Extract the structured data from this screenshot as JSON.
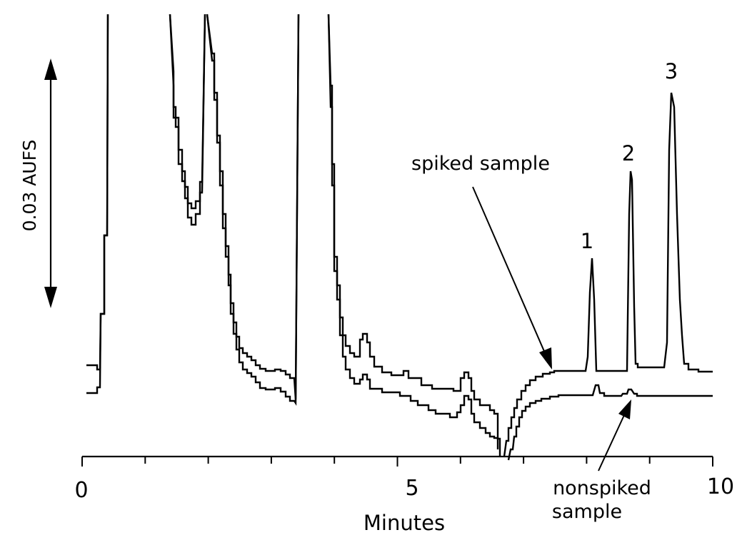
{
  "chart_data": {
    "type": "line",
    "title": "",
    "xlabel": "Minutes",
    "ylabel": "",
    "xlim": [
      0,
      10
    ],
    "x_ticks": [
      0,
      1,
      2,
      3,
      4,
      5,
      6,
      7,
      8,
      9,
      10
    ],
    "x_tick_labels": [
      {
        "x": 0,
        "label": "0"
      },
      {
        "x": 5,
        "label": "5"
      },
      {
        "x": 10,
        "label": "10"
      }
    ],
    "scale_bar": {
      "label": "0.03 AUFS",
      "value_aufs": 0.03
    },
    "series": [
      {
        "name": "spiked sample",
        "x": [
          0.0,
          0.2,
          0.25,
          0.3,
          0.35,
          0.38,
          0.6,
          1.3,
          1.5,
          1.8,
          2.0,
          2.5,
          3.0,
          3.08,
          3.1,
          3.55,
          3.6,
          3.8,
          4.0,
          4.5,
          5.0,
          5.7,
          6.0,
          6.3,
          6.5,
          6.6,
          6.8,
          7.0,
          7.2,
          7.4,
          7.6,
          7.75,
          7.9,
          8.0,
          8.2,
          8.4,
          8.9,
          9.0,
          9.1,
          9.3,
          9.5,
          10.0
        ],
        "y": [
          0.0,
          0.0,
          0.02,
          0.09,
          0.12,
          0.13,
          0.13,
          0.135,
          0.095,
          0.13,
          0.1,
          0.006,
          0.0,
          -0.005,
          0.13,
          0.13,
          0.05,
          0.02,
          0.013,
          0.003,
          0.0,
          -0.005,
          0.007,
          0.0,
          -0.01,
          -0.008,
          -0.003,
          0.0,
          0.0,
          0.0,
          0.0,
          0.003,
          0.018,
          0.0,
          0.0,
          0.03,
          0.0,
          0.0,
          0.041,
          0.0,
          0.0,
          0.0
        ]
      },
      {
        "name": "nonspiked sample",
        "x": [
          0.0,
          0.2,
          0.25,
          0.3,
          0.35,
          0.38,
          0.6,
          1.3,
          1.5,
          1.8,
          2.0,
          2.5,
          3.0,
          3.08,
          3.1,
          3.55,
          3.6,
          3.8,
          4.0,
          4.5,
          5.0,
          5.7,
          6.0,
          6.3,
          6.5,
          6.6,
          6.8,
          7.0,
          7.2,
          7.4,
          7.6,
          7.75,
          7.9,
          8.0,
          8.2,
          8.4,
          8.9,
          9.0,
          9.1,
          9.3,
          9.5,
          10.0
        ],
        "y": [
          0.0,
          0.0,
          0.02,
          0.09,
          0.12,
          0.13,
          0.13,
          0.13,
          0.09,
          0.125,
          0.095,
          0.003,
          0.0,
          -0.005,
          0.13,
          0.13,
          0.045,
          0.012,
          0.003,
          -0.003,
          -0.007,
          -0.012,
          -0.004,
          -0.011,
          -0.015,
          -0.014,
          -0.009,
          -0.005,
          -0.004,
          -0.004,
          -0.004,
          -0.004,
          -0.001,
          -0.004,
          -0.004,
          -0.002,
          -0.004,
          -0.004,
          -0.004,
          -0.004,
          -0.004,
          -0.004
        ]
      }
    ],
    "annotations": [
      {
        "text": "1",
        "x": 9.55,
        "y": 0.02
      },
      {
        "text": "2",
        "x": 9.95,
        "y": 0.031
      },
      {
        "text": "3",
        "x": 10.4,
        "y": 0.042
      },
      {
        "text": "spiked sample",
        "x": 7.8,
        "y": 0.035
      },
      {
        "text": "nonspiked sample",
        "x": 8.8,
        "y": -0.018
      }
    ]
  }
}
